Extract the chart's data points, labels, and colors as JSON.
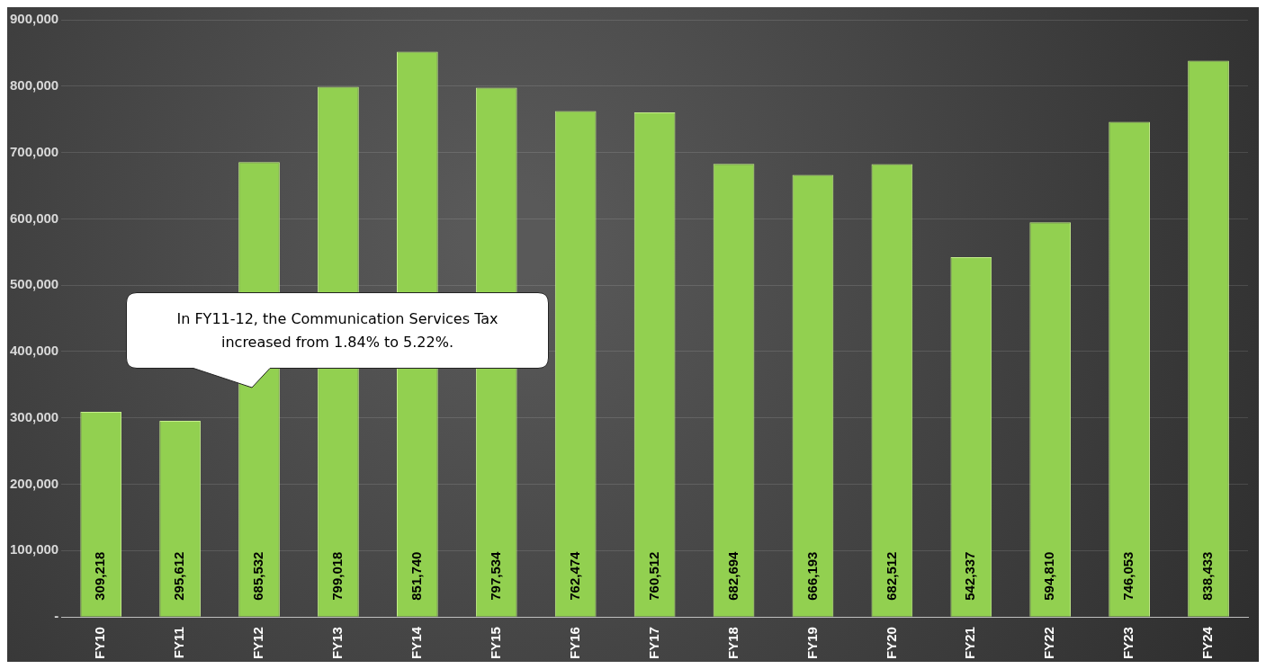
{
  "chart_data": {
    "type": "bar",
    "categories": [
      "FY10",
      "FY11",
      "FY12",
      "FY13",
      "FY14",
      "FY15",
      "FY16",
      "FY17",
      "FY18",
      "FY19",
      "FY20",
      "FY21",
      "FY22",
      "FY23",
      "FY24"
    ],
    "values": [
      309218,
      295612,
      685532,
      799018,
      851740,
      797534,
      762474,
      760512,
      682694,
      666193,
      682512,
      542337,
      594810,
      746053,
      838433
    ],
    "color": "#92d050",
    "ylim": [
      0,
      900000
    ],
    "yticks": [
      {
        "value": 0,
        "label": "-"
      },
      {
        "value": 100000,
        "label": "100,000"
      },
      {
        "value": 200000,
        "label": "200,000"
      },
      {
        "value": 300000,
        "label": "300,000"
      },
      {
        "value": 400000,
        "label": "400,000"
      },
      {
        "value": 500000,
        "label": "500,000"
      },
      {
        "value": 600000,
        "label": "600,000"
      },
      {
        "value": 700000,
        "label": "700,000"
      },
      {
        "value": 800000,
        "label": "800,000"
      },
      {
        "value": 900000,
        "label": "900,000"
      }
    ],
    "value_labels": [
      "309,218",
      "295,612",
      "685,532",
      "799,018",
      "851,740",
      "797,534",
      "762,474",
      "760,512",
      "682,694",
      "666,193",
      "682,512",
      "542,337",
      "594,810",
      "746,053",
      "838,433"
    ],
    "grid": "y",
    "legend": false,
    "annotations": [
      "In FY11-12, the Communication Services Tax increased from 1.84% to 5.22%."
    ]
  }
}
